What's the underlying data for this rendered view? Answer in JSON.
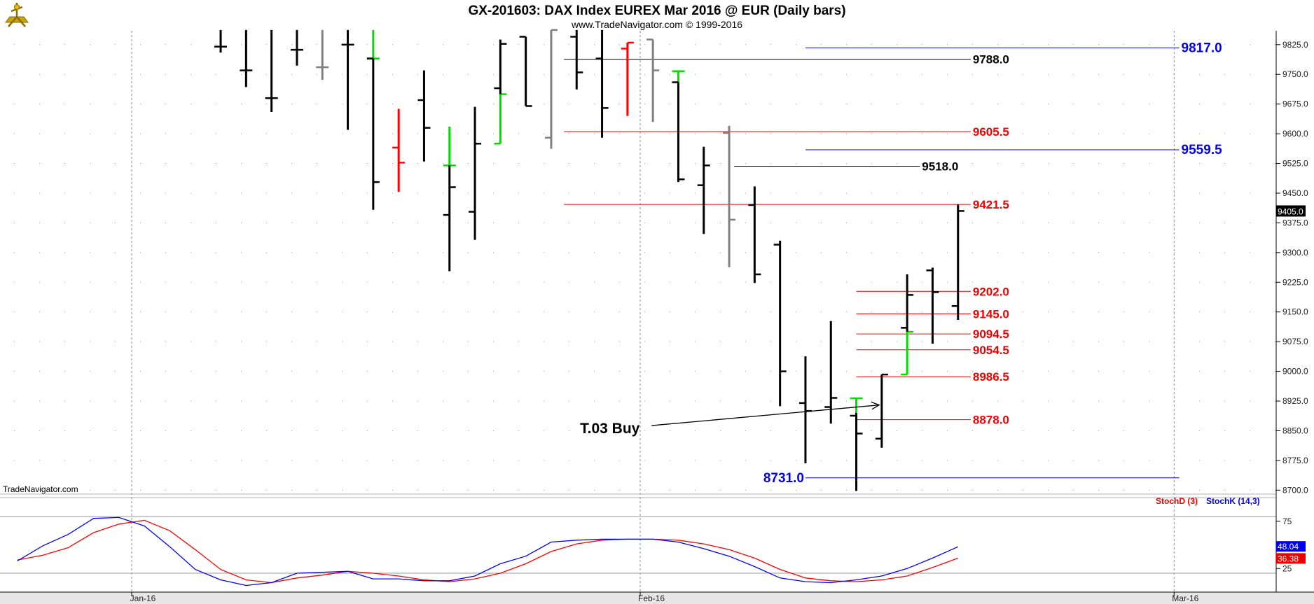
{
  "header": {
    "title": "GX-201603:  DAX Index EUREX Mar 2016 @ EUR  (Daily bars)",
    "subtitle": "www.TradeNavigator.com © 1999-2016"
  },
  "watermark": "TradeNavigator.com",
  "colors": {
    "up": "#00dd00",
    "down": "#ff0000",
    "neutral": "#808080",
    "bar": "#000000",
    "blue_level": "#0000ee",
    "red_level": "#ee0000",
    "black_level": "#000000",
    "stoch_d": "#ff0000",
    "stoch_k": "#0000ff"
  },
  "icons": {
    "logo": "sextant-icon"
  },
  "chart_data": {
    "type": "ohlc",
    "price_axis": {
      "range": [
        8690,
        9860
      ],
      "ticks": [
        "9825.0",
        "9750.0",
        "9675.0",
        "9600.0",
        "9525.0",
        "9450.0",
        "9375.0",
        "9300.0",
        "9225.0",
        "9150.0",
        "9075.0",
        "9000.0",
        "8925.0",
        "8850.0",
        "8775.0",
        "8700.0"
      ],
      "last_price": "9405.0"
    },
    "time_axis": {
      "ticks": [
        {
          "label": "Jan-16",
          "index": 0
        },
        {
          "label": "Feb-16",
          "index": 20
        },
        {
          "label": "Mar-16",
          "index": 41
        }
      ]
    },
    "bars": [
      {
        "i": 3.5,
        "h": 9862,
        "l": 9805,
        "o": 9820,
        "c": 9820,
        "color": "bar"
      },
      {
        "i": 4.5,
        "h": 9862,
        "l": 9718,
        "o": 9760,
        "c": 9760,
        "color": "bar"
      },
      {
        "i": 5.5,
        "h": 9862,
        "l": 9655,
        "o": 9690,
        "c": 9690,
        "color": "bar"
      },
      {
        "i": 6.5,
        "h": 9862,
        "l": 9772,
        "o": 9812,
        "c": 9812,
        "color": "bar"
      },
      {
        "i": 7.5,
        "h": 9862,
        "l": 9736,
        "o": 9768,
        "c": 9768,
        "color": "neutral"
      },
      {
        "i": 8.5,
        "h": 9862,
        "l": 9610,
        "o": 9825,
        "c": 9825,
        "color": "bar"
      },
      {
        "i": 9.5,
        "h": 9862,
        "l": 9790,
        "o": 9790,
        "c": 9790,
        "color": "up"
      },
      {
        "i": 9.5,
        "h": 9790,
        "l": 9408,
        "o": 9790,
        "c": 9478,
        "color": "bar"
      },
      {
        "i": 10.5,
        "h": 9663,
        "l": 9453,
        "o": 9565,
        "c": 9527,
        "color": "down"
      },
      {
        "i": 11.5,
        "h": 9760,
        "l": 9530,
        "o": 9685,
        "c": 9615,
        "color": "bar"
      },
      {
        "i": 12.5,
        "h": 9618,
        "l": 9520,
        "o": 9520,
        "c": 9520,
        "color": "up"
      },
      {
        "i": 12.5,
        "h": 9520,
        "l": 9253,
        "o": 9395,
        "c": 9465,
        "color": "bar"
      },
      {
        "i": 13.5,
        "h": 9668,
        "l": 9332,
        "o": 9403,
        "c": 9575,
        "color": "bar"
      },
      {
        "i": 14.5,
        "h": 9700,
        "l": 9575,
        "o": 9575,
        "c": 9700,
        "color": "up"
      },
      {
        "i": 14.5,
        "h": 9838,
        "l": 9700,
        "o": 9715,
        "c": 9827,
        "color": "bar"
      },
      {
        "i": 15.5,
        "h": 9845,
        "l": 9670,
        "o": 9845,
        "c": 9670,
        "color": "bar"
      },
      {
        "i": 16.5,
        "h": 9862,
        "l": 9562,
        "o": 9590,
        "c": 9862,
        "color": "neutral"
      },
      {
        "i": 17.5,
        "h": 9862,
        "l": 9712,
        "o": 9845,
        "c": 9755,
        "color": "bar"
      },
      {
        "i": 18.5,
        "h": 9862,
        "l": 9590,
        "o": 9790,
        "c": 9665,
        "color": "bar"
      },
      {
        "i": 19.5,
        "h": 9830,
        "l": 9645,
        "o": 9815,
        "c": 9830,
        "color": "down"
      },
      {
        "i": 20.5,
        "h": 9838,
        "l": 9630,
        "o": 9838,
        "c": 9760,
        "color": "neutral"
      },
      {
        "i": 21.5,
        "h": 9758,
        "l": 9730,
        "o": 9758,
        "c": 9758,
        "color": "up"
      },
      {
        "i": 21.5,
        "h": 9730,
        "l": 9478,
        "o": 9730,
        "c": 9485,
        "color": "bar"
      },
      {
        "i": 22.5,
        "h": 9567,
        "l": 9347,
        "o": 9470,
        "c": 9520,
        "color": "bar"
      },
      {
        "i": 23.5,
        "h": 9620,
        "l": 9263,
        "o": 9602,
        "c": 9383,
        "color": "neutral"
      },
      {
        "i": 24.5,
        "h": 9467,
        "l": 9223,
        "o": 9420,
        "c": 9245,
        "color": "bar"
      },
      {
        "i": 25.5,
        "h": 9330,
        "l": 8912,
        "o": 9320,
        "c": 9000,
        "color": "bar"
      },
      {
        "i": 26.5,
        "h": 9038,
        "l": 8768,
        "o": 8920,
        "c": 8900,
        "color": "bar"
      },
      {
        "i": 27.5,
        "h": 9127,
        "l": 8868,
        "o": 8910,
        "c": 8933,
        "color": "bar"
      },
      {
        "i": 28.5,
        "h": 8932,
        "l": 8895,
        "o": 8932,
        "c": 8932,
        "color": "up"
      },
      {
        "i": 28.5,
        "h": 8895,
        "l": 8698,
        "o": 8888,
        "c": 8843,
        "color": "bar"
      },
      {
        "i": 29.5,
        "h": 8992,
        "l": 8807,
        "o": 8830,
        "c": 8992,
        "color": "bar"
      },
      {
        "i": 30.5,
        "h": 9100,
        "l": 8992,
        "o": 8992,
        "c": 9100,
        "color": "up"
      },
      {
        "i": 30.5,
        "h": 9245,
        "l": 9100,
        "o": 9110,
        "c": 9193,
        "color": "bar"
      },
      {
        "i": 31.5,
        "h": 9262,
        "l": 9070,
        "o": 9255,
        "c": 9200,
        "color": "bar"
      },
      {
        "i": 32.5,
        "h": 9421,
        "l": 9130,
        "o": 9165,
        "c": 9405,
        "color": "bar"
      }
    ],
    "levels": [
      {
        "label": "9817.0",
        "price": 9817.0,
        "from": 26.5,
        "to": 41.2,
        "style": "blue"
      },
      {
        "label": "9788.0",
        "price": 9788.0,
        "from": 17.0,
        "to": 33.0,
        "style": "black"
      },
      {
        "label": "9605.5",
        "price": 9605.5,
        "from": 17.0,
        "to": 33.0,
        "style": "red"
      },
      {
        "label": "9559.5",
        "price": 9559.5,
        "from": 26.5,
        "to": 41.2,
        "style": "blue"
      },
      {
        "label": "9518.0",
        "price": 9518.0,
        "from": 23.7,
        "to": 31.0,
        "style": "black"
      },
      {
        "label": "9421.5",
        "price": 9421.5,
        "from": 17.0,
        "to": 33.0,
        "style": "red"
      },
      {
        "label": "9202.0",
        "price": 9202.0,
        "from": 28.5,
        "to": 33.0,
        "style": "red"
      },
      {
        "label": "9145.0",
        "price": 9145.0,
        "from": 28.5,
        "to": 33.0,
        "style": "red"
      },
      {
        "label": "9094.5",
        "price": 9094.5,
        "from": 28.5,
        "to": 33.0,
        "style": "red"
      },
      {
        "label": "9054.5",
        "price": 9054.5,
        "from": 28.5,
        "to": 33.0,
        "style": "red"
      },
      {
        "label": "8986.5",
        "price": 8986.5,
        "from": 28.5,
        "to": 33.0,
        "style": "red"
      },
      {
        "label": "8878.0",
        "price": 8878.0,
        "from": 28.5,
        "to": 33.0,
        "style": "red"
      },
      {
        "label": "8731.0",
        "price": 8731.0,
        "from": 26.5,
        "to": 41.2,
        "style": "blue",
        "label_side": "left"
      }
    ],
    "annotation": {
      "text": "T.03 Buy",
      "text_at": [
        20.5,
        8856
      ],
      "arrow_to": [
        29.4,
        8915
      ]
    },
    "stochastic": {
      "range": [
        0,
        100
      ],
      "ticks": [
        "75",
        "25"
      ],
      "hlines": [
        80,
        20
      ],
      "legend": {
        "d": "StochD (3)",
        "k": "StochK (14,3)"
      },
      "last_k": "48.04",
      "last_d": "36.38",
      "k": [
        [
          -4.5,
          33
        ],
        [
          -3.5,
          49
        ],
        [
          -2.5,
          61
        ],
        [
          -1.5,
          78
        ],
        [
          -0.5,
          79
        ],
        [
          0.5,
          70
        ],
        [
          1.5,
          48
        ],
        [
          2.5,
          24
        ],
        [
          3.5,
          13
        ],
        [
          4.5,
          7
        ],
        [
          5.5,
          10
        ],
        [
          6.5,
          20
        ],
        [
          7.5,
          21
        ],
        [
          8.5,
          22
        ],
        [
          9.5,
          14
        ],
        [
          10.5,
          14
        ],
        [
          11.5,
          12
        ],
        [
          12.5,
          12
        ],
        [
          13.5,
          17
        ],
        [
          14.5,
          30
        ],
        [
          15.5,
          38
        ],
        [
          16.5,
          53
        ],
        [
          17.5,
          55
        ],
        [
          18.5,
          56
        ],
        [
          19.5,
          56
        ],
        [
          20.5,
          56
        ],
        [
          21.5,
          53
        ],
        [
          22.5,
          46
        ],
        [
          23.5,
          38
        ],
        [
          24.5,
          27
        ],
        [
          25.5,
          15
        ],
        [
          26.5,
          11
        ],
        [
          27.5,
          10
        ],
        [
          28.5,
          13
        ],
        [
          29.5,
          17
        ],
        [
          30.5,
          25
        ],
        [
          31.5,
          36
        ],
        [
          32.5,
          48
        ]
      ],
      "d": [
        [
          -4.5,
          34
        ],
        [
          -3.5,
          39
        ],
        [
          -2.5,
          47
        ],
        [
          -1.5,
          63
        ],
        [
          -0.5,
          72
        ],
        [
          0.5,
          76
        ],
        [
          1.5,
          65
        ],
        [
          2.5,
          45
        ],
        [
          3.5,
          24
        ],
        [
          4.5,
          13
        ],
        [
          5.5,
          10
        ],
        [
          6.5,
          15
        ],
        [
          7.5,
          18
        ],
        [
          8.5,
          22
        ],
        [
          9.5,
          20
        ],
        [
          10.5,
          17
        ],
        [
          11.5,
          13
        ],
        [
          12.5,
          11
        ],
        [
          13.5,
          14
        ],
        [
          14.5,
          20
        ],
        [
          15.5,
          30
        ],
        [
          16.5,
          43
        ],
        [
          17.5,
          51
        ],
        [
          18.5,
          55
        ],
        [
          19.5,
          56
        ],
        [
          20.5,
          56
        ],
        [
          21.5,
          55
        ],
        [
          22.5,
          51
        ],
        [
          23.5,
          45
        ],
        [
          24.5,
          36
        ],
        [
          25.5,
          24
        ],
        [
          26.5,
          15
        ],
        [
          27.5,
          12
        ],
        [
          28.5,
          11
        ],
        [
          29.5,
          13
        ],
        [
          30.5,
          17
        ],
        [
          31.5,
          26
        ],
        [
          32.5,
          36
        ]
      ]
    }
  }
}
